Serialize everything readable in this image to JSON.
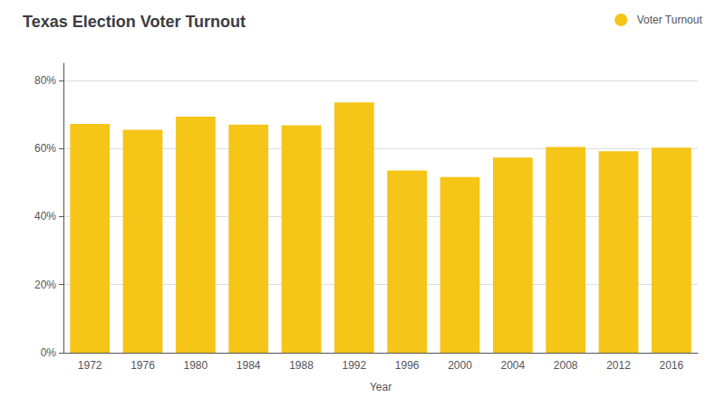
{
  "chart_data": {
    "type": "bar",
    "title": "Texas Election Voter Turnout",
    "xlabel": "Year",
    "categories": [
      "1972",
      "1976",
      "1980",
      "1984",
      "1988",
      "1992",
      "1996",
      "2000",
      "2004",
      "2008",
      "2012",
      "2016"
    ],
    "series": [
      {
        "name": "Voter Turnout",
        "color": "#F5C518",
        "values": [
          0.672,
          0.655,
          0.693,
          0.67,
          0.668,
          0.735,
          0.535,
          0.516,
          0.573,
          0.604,
          0.592,
          0.602
        ]
      }
    ],
    "ylim": [
      0,
      0.85
    ],
    "yticks": [
      {
        "value": 0.0,
        "label": "0%"
      },
      {
        "value": 0.2,
        "label": "20%"
      },
      {
        "value": 0.4,
        "label": "40%"
      },
      {
        "value": 0.6,
        "label": "60%"
      },
      {
        "value": 0.8,
        "label": "80%"
      }
    ],
    "grid": true,
    "legend": "upper right"
  }
}
